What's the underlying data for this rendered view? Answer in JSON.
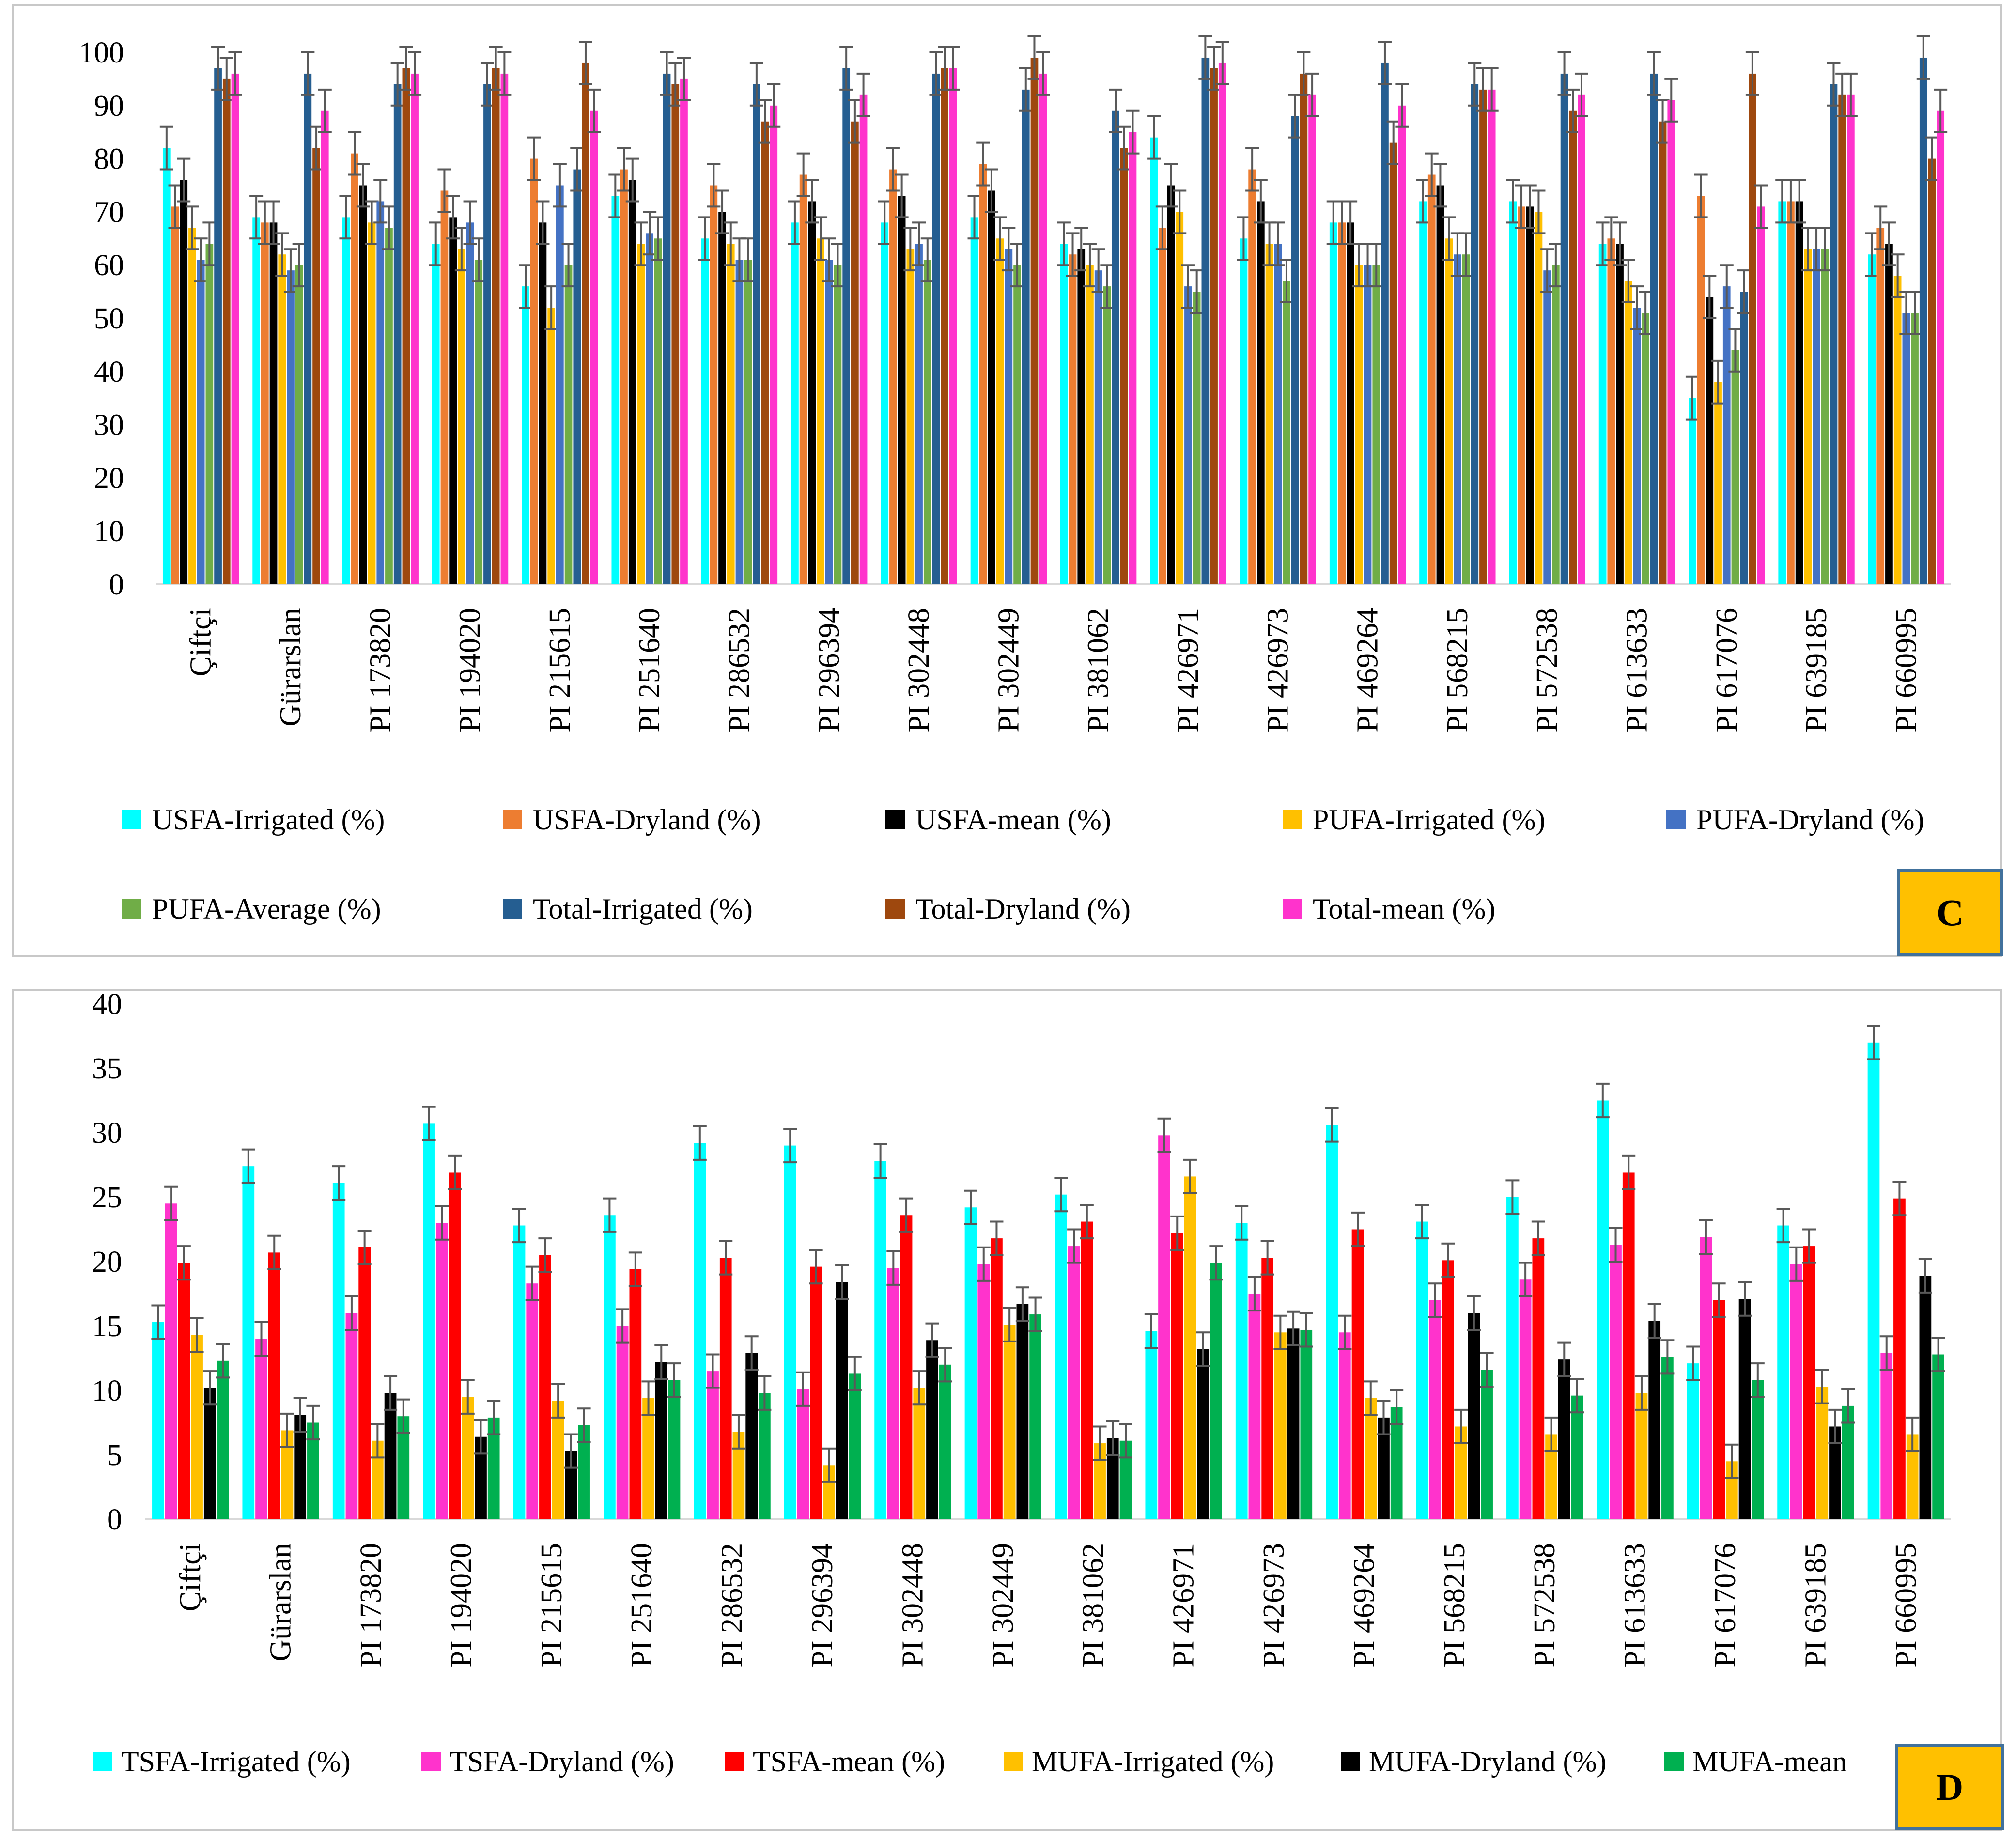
{
  "chart_data": [
    {
      "type": "bar",
      "panel_label": "C",
      "title": "",
      "xlabel": "",
      "ylabel": "",
      "ylim": [
        0,
        100
      ],
      "yticks": [
        "0",
        "10",
        "20",
        "30",
        "40",
        "50",
        "60",
        "70",
        "80",
        "90",
        "100"
      ],
      "grid": false,
      "legend_position": "bottom",
      "error_bars": true,
      "categories": [
        "Çiftçi",
        "Gürarslan",
        "PI 173820",
        "PI 194020",
        "PI 215615",
        "PI 251640",
        "PI 286532",
        "PI 296394",
        "PI 302448",
        "PI 302449",
        "PI 381062",
        "PI 426971",
        "PI 426973",
        "PI 469264",
        "PI 568215",
        "PI 572538",
        "PI 613633",
        "PI 617076",
        "PI 639185",
        "PI 660995"
      ],
      "series": [
        {
          "name": "USFA-Irrigated (%)",
          "color": "#00ffff",
          "values": [
            82,
            69,
            69,
            64,
            56,
            73,
            65,
            68,
            68,
            69,
            64,
            84,
            65,
            68,
            72,
            72,
            64,
            35,
            72,
            62
          ]
        },
        {
          "name": "USFA-Dryland (%)",
          "color": "#ed7d31",
          "values": [
            71,
            68,
            81,
            74,
            80,
            78,
            75,
            77,
            78,
            79,
            62,
            67,
            78,
            68,
            77,
            71,
            65,
            73,
            72,
            67
          ]
        },
        {
          "name": "USFA-mean (%)",
          "color": "#000000",
          "values": [
            76,
            68,
            75,
            69,
            68,
            76,
            70,
            72,
            73,
            74,
            63,
            75,
            72,
            68,
            75,
            71,
            64,
            54,
            72,
            64
          ]
        },
        {
          "name": "PUFA-Irrigated (%)",
          "color": "#ffc000",
          "values": [
            67,
            62,
            68,
            63,
            52,
            64,
            64,
            65,
            63,
            65,
            60,
            70,
            64,
            60,
            65,
            70,
            57,
            38,
            63,
            58
          ]
        },
        {
          "name": "PUFA-Dryland (%)",
          "color": "#4472c4",
          "values": [
            61,
            59,
            72,
            68,
            75,
            66,
            61,
            61,
            64,
            63,
            59,
            56,
            64,
            60,
            62,
            59,
            52,
            56,
            63,
            51
          ]
        },
        {
          "name": "PUFA-Average (%)",
          "color": "#70ad47",
          "values": [
            64,
            60,
            67,
            61,
            60,
            65,
            61,
            60,
            61,
            60,
            56,
            55,
            57,
            60,
            62,
            60,
            51,
            44,
            63,
            51
          ]
        },
        {
          "name": "Total-Irrigated (%)",
          "color": "#255e91",
          "values": [
            97,
            96,
            94,
            94,
            78,
            96,
            94,
            97,
            96,
            93,
            89,
            99,
            88,
            98,
            94,
            96,
            96,
            55,
            94,
            99
          ]
        },
        {
          "name": "Total-Dryland (%)",
          "color": "#9e480e",
          "values": [
            95,
            82,
            97,
            97,
            98,
            94,
            87,
            87,
            97,
            99,
            82,
            97,
            96,
            83,
            93,
            89,
            87,
            96,
            92,
            80
          ]
        },
        {
          "name": "Total-mean (%)",
          "color": "#ff33cc",
          "values": [
            96,
            89,
            96,
            96,
            89,
            95,
            90,
            92,
            97,
            96,
            85,
            98,
            92,
            90,
            93,
            92,
            91,
            71,
            92,
            89
          ]
        }
      ]
    },
    {
      "type": "bar",
      "panel_label": "D",
      "title": "",
      "xlabel": "",
      "ylabel": "",
      "ylim": [
        0,
        40
      ],
      "yticks": [
        "0",
        "5",
        "10",
        "15",
        "20",
        "25",
        "30",
        "35",
        "40"
      ],
      "grid": false,
      "legend_position": "bottom",
      "error_bars": true,
      "categories": [
        "Çiftçi",
        "Gürarslan",
        "PI 173820",
        "PI 194020",
        "PI 215615",
        "PI 251640",
        "PI 286532",
        "PI 296394",
        "PI 302448",
        "PI 302449",
        "PI 381062",
        "PI 426971",
        "PI 426973",
        "PI 469264",
        "PI 568215",
        "PI 572538",
        "PI 613633",
        "PI 617076",
        "PI 639185",
        "PI 660995"
      ],
      "series": [
        {
          "name": "TSFA-Irrigated (%)",
          "color": "#00ffff",
          "values": [
            15.3,
            27.4,
            26.1,
            30.7,
            22.8,
            23.6,
            29.2,
            29.0,
            27.8,
            24.2,
            25.2,
            14.6,
            23.0,
            30.6,
            23.1,
            25.0,
            32.5,
            12.1,
            22.8,
            37.0
          ]
        },
        {
          "name": "TSFA-Dryland (%)",
          "color": "#ff33cc",
          "values": [
            24.5,
            14.0,
            16.0,
            23.0,
            18.3,
            15.0,
            11.5,
            10.1,
            19.5,
            19.8,
            21.2,
            29.8,
            17.5,
            14.5,
            17.0,
            18.6,
            21.3,
            21.9,
            19.8,
            12.9
          ]
        },
        {
          "name": "TSFA-mean (%)",
          "color": "#ff0000",
          "values": [
            19.9,
            20.7,
            21.1,
            26.9,
            20.5,
            19.4,
            20.3,
            19.6,
            23.6,
            21.8,
            23.1,
            22.2,
            20.3,
            22.5,
            20.1,
            21.8,
            26.9,
            17.0,
            21.2,
            24.9
          ]
        },
        {
          "name": "MUFA-Irrigated (%)",
          "color": "#ffc000",
          "values": [
            14.3,
            6.9,
            6.1,
            9.5,
            9.2,
            9.4,
            6.8,
            4.2,
            10.2,
            15.1,
            5.9,
            26.6,
            14.5,
            9.4,
            7.2,
            6.6,
            9.8,
            4.5,
            10.3,
            6.6
          ]
        },
        {
          "name": "MUFA-Dryland (%)",
          "color": "#000000",
          "values": [
            10.2,
            8.1,
            9.8,
            6.4,
            5.3,
            12.2,
            12.9,
            18.4,
            13.9,
            16.7,
            6.3,
            13.2,
            14.8,
            7.9,
            16.0,
            12.4,
            15.4,
            17.1,
            7.2,
            18.9
          ]
        },
        {
          "name": "MUFA-mean",
          "color": "#00b050",
          "values": [
            12.3,
            7.5,
            8.0,
            7.9,
            7.3,
            10.8,
            9.8,
            11.3,
            12.0,
            15.9,
            6.1,
            19.9,
            14.7,
            8.7,
            11.6,
            9.6,
            12.6,
            10.8,
            8.8,
            12.8
          ]
        }
      ]
    }
  ]
}
